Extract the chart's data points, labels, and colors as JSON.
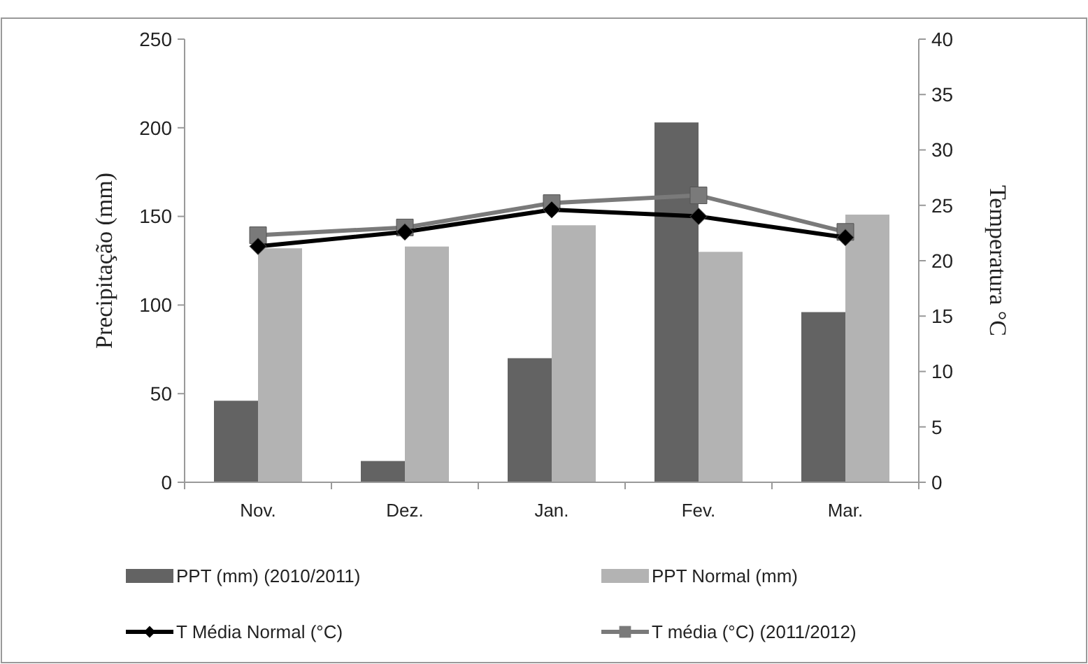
{
  "chart_data": {
    "type": "bar",
    "categories": [
      "Nov.",
      "Dez.",
      "Jan.",
      "Fev.",
      "Mar."
    ],
    "ylabel": "Precipitação (mm)",
    "y2label": "Temperatura  °C",
    "ylim": [
      0,
      250
    ],
    "yticks": [
      0,
      50,
      100,
      150,
      200,
      250
    ],
    "y2lim": [
      0,
      40
    ],
    "y2ticks": [
      0,
      5,
      10,
      15,
      20,
      25,
      30,
      35,
      40
    ],
    "series": [
      {
        "name": "PPT (mm) (2010/2011)",
        "color": "#636363",
        "values": [
          46,
          12,
          70,
          203,
          96
        ]
      },
      {
        "name": "PPT Normal (mm)",
        "color": "#b3b3b3",
        "values": [
          132,
          133,
          145,
          130,
          151
        ]
      },
      {
        "name": "T Média Normal (°C)",
        "type": "line",
        "axis": "y2",
        "color": "#000000",
        "marker": "diamond",
        "values": [
          21.3,
          22.6,
          24.6,
          24.0,
          22.1
        ]
      },
      {
        "name": "T média (°C) (2011/2012)",
        "type": "line",
        "axis": "y2",
        "color": "#7a7a7a",
        "marker": "square",
        "values": [
          22.3,
          23.0,
          25.2,
          25.9,
          22.6
        ]
      }
    ],
    "legend": "bottom",
    "grid": false
  }
}
